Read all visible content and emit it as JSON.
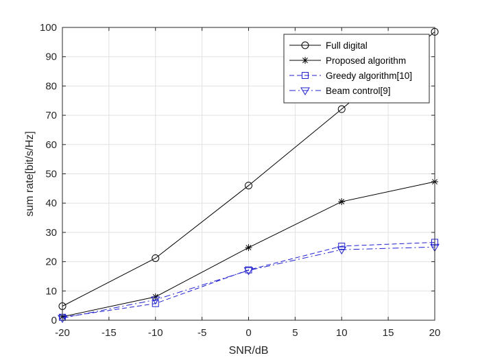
{
  "chart_data": {
    "type": "line",
    "title": "",
    "xlabel": "SNR/dB",
    "ylabel": "sum rate[bit/s/Hz]",
    "xlim": [
      -20,
      20
    ],
    "ylim": [
      0,
      100
    ],
    "x_ticks": [
      -20,
      -15,
      -10,
      -5,
      0,
      5,
      10,
      15,
      20
    ],
    "y_ticks": [
      0,
      10,
      20,
      30,
      40,
      50,
      60,
      70,
      80,
      90,
      100
    ],
    "grid": true,
    "legend_position": "top-right",
    "x": [
      -20,
      -10,
      0,
      10,
      20
    ],
    "series": [
      {
        "name": "Full digital",
        "values": [
          4.8,
          21.2,
          46.0,
          72.1,
          98.5
        ],
        "color": "#000000",
        "line_style": "solid",
        "marker": "circle"
      },
      {
        "name": "Proposed algorithm",
        "values": [
          1.2,
          8.0,
          24.8,
          40.5,
          47.3
        ],
        "color": "#000000",
        "line_style": "solid",
        "marker": "asterisk"
      },
      {
        "name": "Greedy algorithm[10]",
        "values": [
          1.0,
          5.7,
          17.2,
          25.3,
          26.6
        ],
        "color": "#1f1fd0",
        "line_style": "dashed",
        "marker": "square"
      },
      {
        "name": "Beam control[9]",
        "values": [
          0.7,
          7.0,
          17.0,
          24.1,
          25.0
        ],
        "color": "#1f1fd0",
        "line_style": "dashdot",
        "marker": "triangle-down"
      }
    ]
  }
}
